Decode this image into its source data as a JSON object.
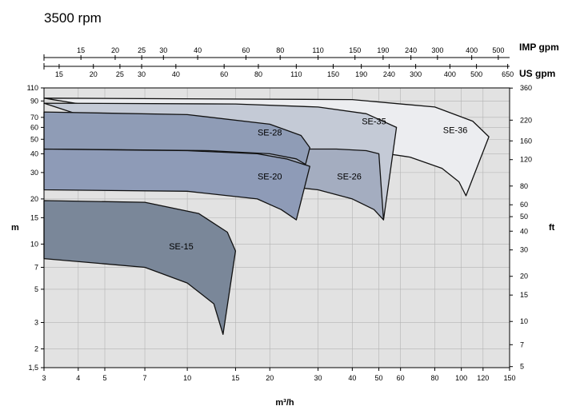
{
  "chart_data": {
    "type": "area",
    "title": "3500 rpm",
    "xlabel": "m³/h",
    "ylabel_left": "m",
    "ylabel_right": "ft",
    "top_axis_1_label": "IMP gpm",
    "top_axis_2_label": "US gpm",
    "x_scale": "log",
    "y_scale": "log",
    "xlim": [
      3,
      150
    ],
    "ylim": [
      1.5,
      110
    ],
    "grid": true,
    "x_ticks": [
      "3",
      "4",
      "5",
      "7",
      "10",
      "15",
      "20",
      "30",
      "40",
      "50",
      "60",
      "80",
      "100",
      "120",
      "150"
    ],
    "y_ticks": [
      "1,5",
      "2",
      "3",
      "5",
      "7",
      "10",
      "15",
      "20",
      "30",
      "40",
      "50",
      "60",
      "70",
      "90",
      "110"
    ],
    "y_ticks_right": [
      "5",
      "7",
      "10",
      "15",
      "20",
      "30",
      "40",
      "50",
      "60",
      "80",
      "120",
      "160",
      "220",
      "360"
    ],
    "top_ticks_imp": [
      "15",
      "20",
      "25",
      "30",
      "40",
      "60",
      "80",
      "110",
      "150",
      "190",
      "240",
      "300",
      "400",
      "500"
    ],
    "top_ticks_us": [
      "15",
      "20",
      "25",
      "30",
      "40",
      "60",
      "80",
      "110",
      "150",
      "190",
      "240",
      "300",
      "400",
      "500",
      "650"
    ],
    "series": [
      {
        "name": "SE-36",
        "color": "#ecedf0",
        "upper": [
          [
            3,
            94
          ],
          [
            40,
            92
          ],
          [
            80,
            82
          ],
          [
            110,
            66
          ],
          [
            126,
            52
          ]
        ],
        "lower": [
          [
            45,
            42
          ],
          [
            65,
            38
          ],
          [
            85,
            32
          ],
          [
            98,
            26
          ],
          [
            104,
            21
          ]
        ]
      },
      {
        "name": "SE-35",
        "color": "#c4cad6",
        "upper": [
          [
            3,
            87
          ],
          [
            15,
            86
          ],
          [
            30,
            82
          ],
          [
            45,
            74
          ],
          [
            58,
            60
          ]
        ],
        "lower": [
          [
            24,
            25
          ],
          [
            35,
            23
          ],
          [
            44,
            20
          ],
          [
            50,
            17
          ],
          [
            52,
            14.5
          ]
        ]
      },
      {
        "name": "SE-26",
        "color": "#a4adc0",
        "upper": [
          [
            3,
            43
          ],
          [
            20,
            43
          ],
          [
            35,
            43
          ],
          [
            45,
            42
          ],
          [
            50,
            40
          ]
        ],
        "lower": [
          [
            22,
            24.5
          ],
          [
            30,
            23
          ],
          [
            40,
            20
          ],
          [
            48,
            17
          ],
          [
            52,
            14.5
          ]
        ]
      },
      {
        "name": "SE-28",
        "color": "#8f9cb6",
        "upper": [
          [
            3,
            76
          ],
          [
            10,
            73
          ],
          [
            20,
            63
          ],
          [
            26,
            53
          ],
          [
            28,
            44
          ]
        ],
        "lower": [
          [
            3,
            43
          ],
          [
            12,
            42
          ],
          [
            20,
            40
          ],
          [
            25,
            37
          ],
          [
            27,
            34
          ]
        ]
      },
      {
        "name": "SE-20",
        "color": "#8e9bb7",
        "upper": [
          [
            3,
            43
          ],
          [
            10,
            42
          ],
          [
            18,
            40
          ],
          [
            23,
            37
          ],
          [
            28,
            33
          ]
        ],
        "lower": [
          [
            3,
            23
          ],
          [
            10,
            22.5
          ],
          [
            18,
            20
          ],
          [
            22,
            17
          ],
          [
            25,
            14.5
          ]
        ]
      },
      {
        "name": "SE-15",
        "color": "#7a8799",
        "upper": [
          [
            3,
            19.5
          ],
          [
            7,
            19
          ],
          [
            11,
            16
          ],
          [
            14,
            12
          ],
          [
            15,
            9
          ]
        ],
        "lower": [
          [
            3,
            8
          ],
          [
            7,
            7
          ],
          [
            10,
            5.5
          ],
          [
            12.5,
            4
          ],
          [
            13.5,
            2.5
          ]
        ]
      }
    ],
    "annotations": [
      "SE-36",
      "SE-35",
      "SE-26",
      "SE-28",
      "SE-20",
      "SE-15"
    ]
  }
}
